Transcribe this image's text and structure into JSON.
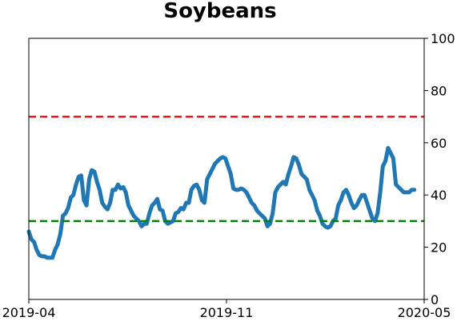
{
  "chart_data": {
    "type": "line",
    "title": "Soybeans",
    "xlabel": "",
    "ylabel": "",
    "x_ticks": [
      "2019-04",
      "2019-11",
      "2020-05"
    ],
    "y_ticks": [
      "0",
      "20",
      "40",
      "60",
      "80",
      "100"
    ],
    "ylim": [
      0,
      100
    ],
    "y_axis_side": "right",
    "grid": false,
    "reference_lines": [
      {
        "value": 70,
        "color": "#e41a1c",
        "style": "dashed"
      },
      {
        "value": 30,
        "color": "#008000",
        "style": "dashed"
      }
    ],
    "series": [
      {
        "color": "#1f77b4",
        "x_range": [
          "2019-04-01",
          "2020-04-24"
        ],
        "values": [
          26,
          23,
          22,
          19,
          17,
          16.5,
          16.5,
          16,
          16,
          16,
          19,
          21,
          25,
          32,
          33,
          35,
          39,
          40,
          44,
          47,
          47.5,
          38,
          36,
          46,
          49.5,
          49,
          45,
          42,
          37,
          35.5,
          34.5,
          37,
          42,
          42,
          44,
          42.5,
          43,
          41,
          36,
          34,
          32,
          31,
          30,
          28,
          29,
          29,
          33,
          36,
          37,
          38.5,
          34.5,
          34,
          30,
          29,
          29.5,
          30,
          33,
          33.5,
          35,
          34.5,
          37,
          37,
          42,
          43.5,
          44,
          42,
          38,
          37,
          46,
          48,
          50,
          52,
          53,
          54,
          54.5,
          54,
          51,
          48,
          42.5,
          42,
          42,
          42.5,
          42,
          41,
          39,
          37,
          36,
          34,
          33,
          32,
          31,
          28,
          29,
          33,
          41,
          43,
          44,
          45,
          44,
          48,
          51,
          54.5,
          54,
          51.5,
          48,
          47,
          46,
          42,
          40,
          38,
          34,
          32,
          29,
          28,
          27.5,
          28,
          30,
          31,
          36,
          38,
          41,
          42,
          40,
          37,
          35,
          36,
          38,
          40,
          40,
          37,
          34,
          31,
          30,
          33,
          41,
          51,
          53,
          58,
          56,
          54,
          44,
          43,
          42,
          41,
          41,
          41,
          42,
          42
        ]
      }
    ]
  }
}
